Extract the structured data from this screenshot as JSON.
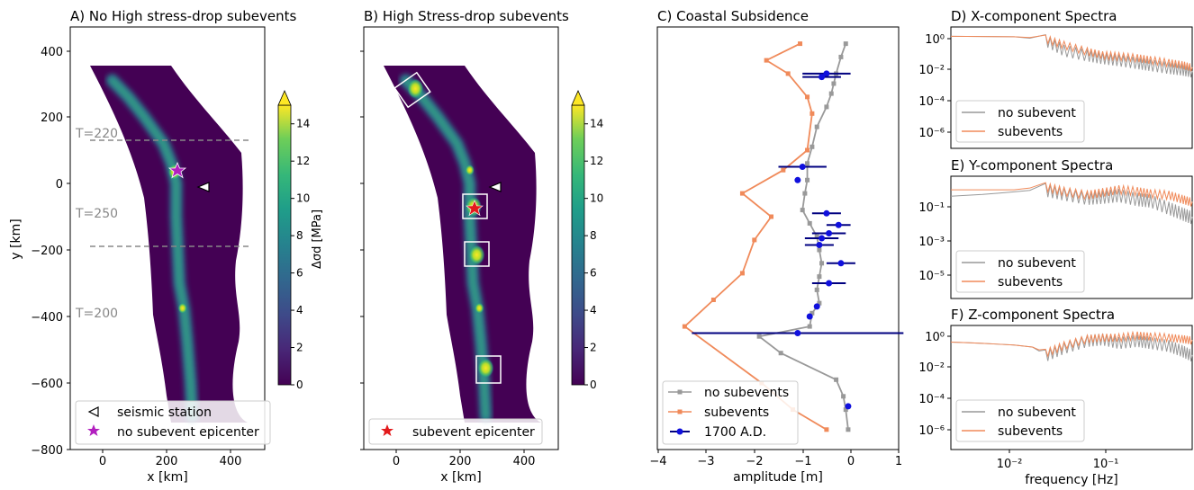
{
  "panels": {
    "A": {
      "title": "A) No High stress-drop subevents",
      "xlabel": "x [km]",
      "ylabel": "y [km]",
      "xticks": [
        "0",
        "200",
        "400"
      ],
      "yticks": [
        "400",
        "200",
        "0",
        "−200",
        "−400",
        "−600",
        "−800"
      ],
      "annotations": [
        "T=220",
        "T=250",
        "T=200"
      ],
      "legend": [
        "seismic station",
        "no subevent epicenter"
      ],
      "colorbar_label": "Δσd [MPa]",
      "colorbar_ticks": [
        "0",
        "2",
        "4",
        "6",
        "8",
        "10",
        "12",
        "14"
      ]
    },
    "B": {
      "title": "B) High Stress-drop subevents",
      "xlabel": "x [km]",
      "xticks": [
        "0",
        "200",
        "400"
      ],
      "legend": [
        "subevent epicenter"
      ],
      "colorbar_ticks": [
        "0",
        "2",
        "4",
        "6",
        "8",
        "10",
        "12",
        "14"
      ]
    },
    "C": {
      "title": "C) Coastal Subsidence",
      "xlabel": "amplitude [m]",
      "xticks": [
        "−4",
        "−3",
        "−2",
        "−1",
        "0",
        "1"
      ],
      "legend": [
        "no subevents",
        "subevents",
        "1700 A.D."
      ]
    },
    "D": {
      "title": "D) X-component Spectra",
      "yticks": [
        "10⁰",
        "10⁻²",
        "10⁻⁴",
        "10⁻⁶"
      ],
      "legend": [
        "no subevent",
        "subevents"
      ]
    },
    "E": {
      "title": "E) Y-component Spectra",
      "yticks": [
        "10⁻¹",
        "10⁻³",
        "10⁻⁵"
      ],
      "legend": [
        "no subevent",
        "subevents"
      ]
    },
    "F": {
      "title": "F) Z-component Spectra",
      "yticks": [
        "10⁰",
        "10⁻²",
        "10⁻⁴",
        "10⁻⁶"
      ],
      "xticks": [
        "10⁻²",
        "10⁻¹"
      ],
      "xlabel": "frequency [Hz]",
      "legend": [
        "no subevent",
        "subevents"
      ]
    }
  },
  "colors": {
    "no_subevent": "#999999",
    "subevents": "#f08a5a",
    "paleo": "#1010dd",
    "paleo_err": "#000080",
    "map_bg": "#440154",
    "accent_star_A": "#b21fbf",
    "accent_star_B": "#e31a1c"
  },
  "chart_data": [
    {
      "type": "heatmap",
      "panel": "A",
      "title": "A) No High stress-drop subevents",
      "xlabel": "x [km]",
      "ylabel": "y [km]",
      "xlim": [
        -100,
        470
      ],
      "ylim": [
        -800,
        470
      ],
      "color_range": [
        0,
        15
      ],
      "fault_trace": [
        [
          30,
          310
        ],
        [
          80,
          260
        ],
        [
          130,
          200
        ],
        [
          190,
          120
        ],
        [
          215,
          60
        ],
        [
          230,
          0
        ],
        [
          230,
          -100
        ],
        [
          235,
          -200
        ],
        [
          240,
          -300
        ],
        [
          255,
          -380
        ],
        [
          265,
          -480
        ],
        [
          275,
          -600
        ],
        [
          280,
          -700
        ]
      ],
      "station": [
        300,
        -15
      ],
      "epicenter": [
        225,
        35
      ],
      "dashed_lines": [
        130,
        -190
      ]
    },
    {
      "type": "heatmap",
      "panel": "B",
      "title": "B) High Stress-drop subevents",
      "xlabel": "x [km]",
      "xlim": [
        -100,
        470
      ],
      "ylim": [
        -800,
        470
      ],
      "color_range": [
        0,
        15
      ],
      "subevent_boxes": [
        [
          60,
          285
        ],
        [
          242,
          -70
        ],
        [
          252,
          -215
        ],
        [
          280,
          -555
        ]
      ],
      "station": [
        300,
        -15
      ],
      "epicenter": [
        240,
        -70
      ]
    },
    {
      "type": "line",
      "panel": "C",
      "title": "C) Coastal Subsidence",
      "xlabel": "amplitude [m]",
      "xlim": [
        -4,
        1
      ],
      "ylim": [
        -800,
        470
      ],
      "series": [
        {
          "name": "no subevents",
          "x": [
            -0.1,
            -0.2,
            -0.3,
            -0.35,
            -0.4,
            -0.5,
            -0.7,
            -0.8,
            -0.9,
            -0.9,
            -0.95,
            -1.0,
            -0.85,
            -0.7,
            -0.65,
            -0.6,
            -0.65,
            -0.7,
            -0.65,
            -0.8,
            -0.85,
            -1.9,
            -1.45,
            -0.3,
            -0.15,
            -0.1,
            -0.05
          ],
          "y": [
            420,
            380,
            330,
            300,
            270,
            230,
            170,
            110,
            60,
            10,
            -30,
            -80,
            -120,
            -160,
            -200,
            -240,
            -280,
            -320,
            -360,
            -390,
            -430,
            -460,
            -510,
            -590,
            -640,
            -680,
            -740
          ]
        },
        {
          "name": "subevents",
          "x": [
            -1.05,
            -1.75,
            -1.3,
            -0.9,
            -0.8,
            -0.9,
            -1.4,
            -2.25,
            -1.65,
            -2.0,
            -2.25,
            -2.85,
            -3.45,
            -1.85,
            -1.2,
            -0.5
          ],
          "y": [
            420,
            370,
            330,
            260,
            210,
            100,
            40,
            -30,
            -100,
            -170,
            -270,
            -350,
            -430,
            -600,
            -680,
            -740
          ]
        },
        {
          "name": "1700 A.D.",
          "x": [
            -0.5,
            -0.6,
            -1.0,
            -1.1,
            -0.5,
            -0.25,
            -0.45,
            -0.6,
            -0.65,
            -0.2,
            -0.45,
            -0.7,
            -0.85,
            -1.1,
            -0.05
          ],
          "y": [
            330,
            320,
            50,
            10,
            -90,
            -125,
            -150,
            -165,
            -185,
            -240,
            -300,
            -370,
            -400,
            -450,
            -670
          ],
          "xerr": [
            0.5,
            0.4,
            0.5,
            0.0,
            0.3,
            0.25,
            0.35,
            0.35,
            0.3,
            0.3,
            0.35,
            0.0,
            0.0,
            2.2,
            0.0
          ]
        }
      ]
    },
    {
      "type": "line",
      "panel": "D",
      "title": "D) X-component Spectra",
      "xlabel": "frequency [Hz]",
      "xscale": "log",
      "yscale": "log",
      "xlim": [
        0.0025,
        0.5
      ],
      "ylim": [
        1e-07,
        3
      ],
      "series": [
        {
          "name": "no subevent",
          "x": [
            0.0025,
            0.005,
            0.01,
            0.02,
            0.03,
            0.05,
            0.07,
            0.1,
            0.15,
            0.2,
            0.3,
            0.4,
            0.5
          ],
          "y": [
            0.8,
            0.78,
            0.75,
            0.5,
            0.12,
            0.06,
            0.04,
            0.03,
            0.02,
            0.015,
            0.01,
            0.008,
            0.006
          ]
        },
        {
          "name": "subevents",
          "x": [
            0.0025,
            0.005,
            0.01,
            0.02,
            0.03,
            0.05,
            0.07,
            0.1,
            0.15,
            0.2,
            0.3,
            0.4,
            0.5
          ],
          "y": [
            0.8,
            0.78,
            0.75,
            0.6,
            0.25,
            0.1,
            0.06,
            0.05,
            0.04,
            0.03,
            0.02,
            0.015,
            0.01
          ]
        }
      ]
    },
    {
      "type": "line",
      "panel": "E",
      "title": "E) Y-component Spectra",
      "xlabel": "frequency [Hz]",
      "xscale": "log",
      "yscale": "log",
      "xlim": [
        0.0025,
        0.5
      ],
      "ylim": [
        1e-06,
        5
      ],
      "series": [
        {
          "name": "no subevent",
          "x": [
            0.0025,
            0.005,
            0.01,
            0.02,
            0.03,
            0.05,
            0.07,
            0.1,
            0.15,
            0.2,
            0.3,
            0.4,
            0.5
          ],
          "y": [
            0.4,
            0.5,
            0.7,
            1.0,
            0.6,
            0.35,
            0.4,
            0.5,
            0.3,
            0.25,
            0.1,
            0.05,
            0.03
          ]
        },
        {
          "name": "subevents",
          "x": [
            0.0025,
            0.005,
            0.01,
            0.02,
            0.03,
            0.05,
            0.07,
            0.1,
            0.15,
            0.2,
            0.3,
            0.4,
            0.5
          ],
          "y": [
            0.9,
            0.9,
            0.9,
            1.4,
            0.8,
            0.5,
            0.7,
            1.0,
            0.8,
            0.6,
            0.5,
            0.3,
            0.2
          ]
        }
      ]
    },
    {
      "type": "line",
      "panel": "F",
      "title": "F) Z-component Spectra",
      "xlabel": "frequency [Hz]",
      "xscale": "log",
      "yscale": "log",
      "xlim": [
        0.0025,
        0.5
      ],
      "ylim": [
        1e-07,
        3
      ],
      "series": [
        {
          "name": "no subevent",
          "x": [
            0.0025,
            0.005,
            0.01,
            0.015,
            0.02,
            0.03,
            0.05,
            0.07,
            0.1,
            0.15,
            0.2,
            0.3,
            0.4,
            0.5
          ],
          "y": [
            0.3,
            0.25,
            0.2,
            0.15,
            0.05,
            0.15,
            0.4,
            0.5,
            0.3,
            0.4,
            0.3,
            0.2,
            0.1,
            0.05
          ]
        },
        {
          "name": "subevents",
          "x": [
            0.0025,
            0.005,
            0.01,
            0.015,
            0.02,
            0.03,
            0.05,
            0.07,
            0.1,
            0.15,
            0.2,
            0.3,
            0.4,
            0.5
          ],
          "y": [
            0.3,
            0.25,
            0.2,
            0.15,
            0.07,
            0.2,
            0.5,
            0.6,
            0.6,
            0.8,
            0.7,
            0.6,
            0.5,
            0.4
          ]
        }
      ]
    }
  ]
}
